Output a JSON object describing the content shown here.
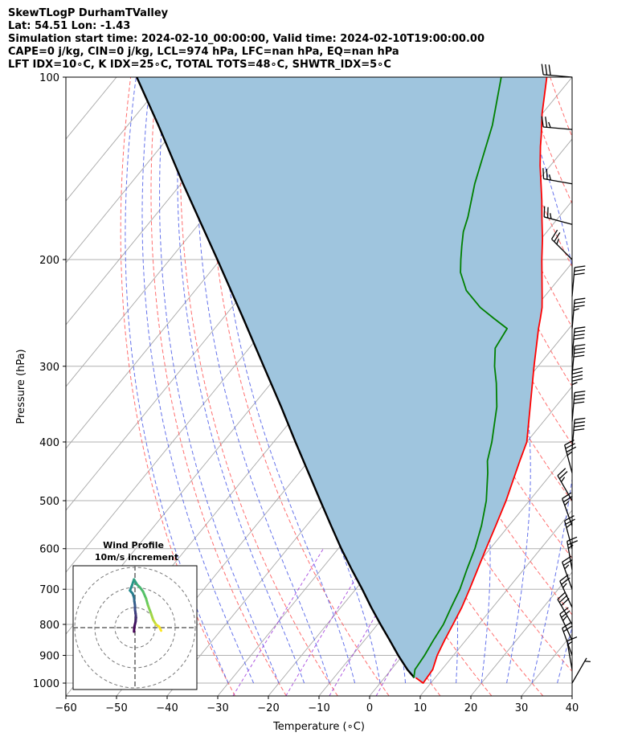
{
  "header": {
    "line1": "SkewTLogP DurhamTValley",
    "line2": "Lat: 54.51   Lon: -1.43",
    "line3": "Simulation start time: 2024-02-10_00:00:00, Valid time: 2024-02-10T19:00:00.00",
    "line4": "CAPE=0 j/kg, CIN=0 j/kg, LCL=974 hPa, LFC=nan hPa, EQ=nan hPa",
    "line5": "LFT IDX=10∘C, K IDX=25∘C, TOTAL TOTS=48∘C, SHWTR_IDX=5∘C"
  },
  "colors": {
    "temperature": "#ff0000",
    "dewpoint": "#008000",
    "parcel": "#000000",
    "cape_fill": "#9fc5de",
    "dry_adiabat": "#ff5555",
    "moist_adiabat": "#4a5ae8",
    "mixing_ratio": "#9b30d9",
    "isotherm": "#a8a8a8",
    "grid": "#b0b0b0"
  },
  "chart_data": {
    "type": "skewt",
    "title": "SkewTLogP DurhamTValley",
    "xlabel": "Temperature (∘C)",
    "ylabel": "Pressure (hPa)",
    "xlim": [
      -60,
      40
    ],
    "ylim": [
      1050,
      100
    ],
    "x_ticks": [
      "−60",
      "−50",
      "−40",
      "−30",
      "−20",
      "−10",
      "0",
      "10",
      "20",
      "30",
      "40"
    ],
    "x_tick_values": [
      -60,
      -50,
      -40,
      -30,
      -20,
      -10,
      0,
      10,
      20,
      30,
      40
    ],
    "y_ticks": [
      "100",
      "200",
      "300",
      "400",
      "500",
      "600",
      "700",
      "800",
      "900",
      "1000"
    ],
    "y_tick_values": [
      100,
      200,
      300,
      400,
      500,
      600,
      700,
      800,
      900,
      1000
    ],
    "temperature": {
      "p": [
        980,
        1000,
        950,
        900,
        850,
        800,
        750,
        700,
        650,
        600,
        550,
        500,
        450,
        430,
        400,
        350,
        300,
        280,
        260,
        250,
        240,
        230,
        215,
        200,
        185,
        170,
        160,
        150,
        140,
        130,
        125,
        115,
        100
      ],
      "t": [
        6.2,
        8.5,
        8.2,
        6.8,
        5.8,
        4.9,
        3.9,
        2.5,
        0.9,
        -0.8,
        -2.6,
        -4.6,
        -7.2,
        -8.3,
        -10.0,
        -15.0,
        -20.8,
        -23.3,
        -26.0,
        -27.3,
        -28.7,
        -30.5,
        -33.4,
        -36.5,
        -39.7,
        -43.4,
        -46.0,
        -48.9,
        -52.0,
        -55.1,
        -56.6,
        -60.0,
        -65.0
      ]
    },
    "dewpoint": {
      "p": [
        980,
        950,
        900,
        850,
        800,
        750,
        700,
        650,
        600,
        550,
        500,
        450,
        430,
        400,
        350,
        320,
        300,
        280,
        260,
        250,
        240,
        225,
        210,
        200,
        190,
        180,
        170,
        150,
        120,
        100
      ],
      "t": [
        5.8,
        4.7,
        4.3,
        3.6,
        3.0,
        1.8,
        0.6,
        -1.2,
        -3.0,
        -5.4,
        -8.5,
        -12.7,
        -14.7,
        -16.9,
        -21.6,
        -25.5,
        -28.6,
        -31.4,
        -32.2,
        -36.5,
        -40.9,
        -46.4,
        -50.5,
        -52.5,
        -54.5,
        -56.5,
        -58.0,
        -62.0,
        -68.0,
        -74.0
      ]
    },
    "parcel": {
      "p": [
        980,
        950,
        900,
        850,
        800,
        750,
        700,
        650,
        600,
        550,
        500,
        450,
        400,
        350,
        300,
        250,
        200,
        150,
        120,
        100
      ],
      "t": [
        5.9,
        3.2,
        -0.9,
        -5.0,
        -9.4,
        -14.0,
        -18.7,
        -23.9,
        -29.4,
        -35.1,
        -41.3,
        -48.1,
        -55.7,
        -64.2,
        -74.2,
        -86.0,
        -100.6,
        -119.6,
        -134.0,
        -146.0
      ]
    },
    "wind_barbs": {
      "p": [
        100,
        122,
        150,
        175,
        200,
        230,
        260,
        290,
        310,
        340,
        370,
        410,
        450,
        500,
        550,
        600,
        650,
        700,
        750,
        800,
        850,
        900,
        950,
        1000
      ],
      "speed_kt": [
        30,
        25,
        25,
        25,
        25,
        30,
        35,
        40,
        40,
        45,
        40,
        40,
        35,
        25,
        25,
        25,
        25,
        25,
        25,
        30,
        25,
        20,
        15,
        5
      ],
      "direction_deg": [
        275,
        275,
        280,
        285,
        315,
        5,
        5,
        5,
        5,
        0,
        5,
        5,
        345,
        330,
        340,
        345,
        350,
        340,
        335,
        330,
        335,
        340,
        350,
        30
      ]
    },
    "hodograph": {
      "title_line1": "Wind Profile",
      "title_line2": "10m/s increment",
      "rings_ms": [
        10,
        20,
        30
      ],
      "u": [
        -0.5,
        -0.3,
        0.3,
        0.5,
        0.3,
        0.0,
        0.0,
        -0.3,
        -0.5,
        -1.2,
        -2.5,
        -1.5,
        -0.5,
        1.0,
        2.5,
        4.0,
        5.5,
        6.5,
        8.0,
        9.0,
        10.5,
        12.0,
        13.0
      ],
      "v": [
        -2.0,
        0.5,
        3.0,
        5.0,
        7.0,
        9.0,
        11.0,
        13.0,
        15.0,
        17.0,
        18.5,
        21.0,
        24.0,
        21.5,
        20.0,
        18.0,
        14.5,
        11.0,
        7.0,
        4.0,
        1.5,
        0.5,
        -1.5
      ]
    }
  }
}
